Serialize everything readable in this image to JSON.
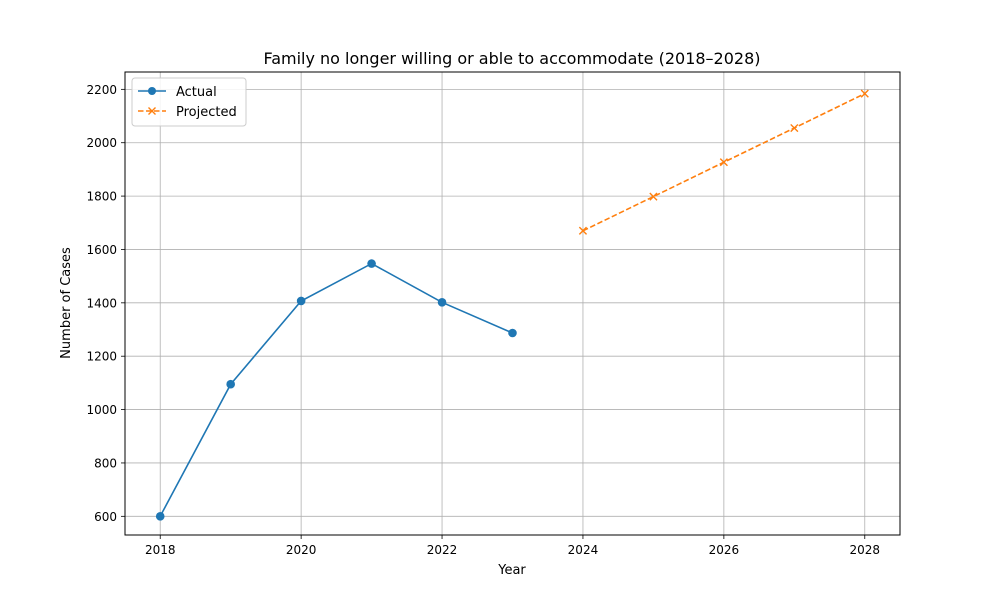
{
  "chart_data": {
    "type": "line",
    "title": "Family no longer willing or able to accommodate (2018–2028)",
    "xlabel": "Year",
    "ylabel": "Number of Cases",
    "xlim": [
      2017.5,
      2028.5
    ],
    "ylim": [
      530,
      2265
    ],
    "xticks": [
      2018,
      2020,
      2022,
      2024,
      2026,
      2028
    ],
    "yticks": [
      600,
      800,
      1000,
      1200,
      1400,
      1600,
      1800,
      2000,
      2200
    ],
    "grid": true,
    "legend_position": "top-left",
    "series": [
      {
        "name": "Actual",
        "color": "#1f77b4",
        "style": "solid",
        "marker": "circle",
        "x": [
          2018,
          2019,
          2020,
          2021,
          2022,
          2023
        ],
        "values": [
          600,
          1095,
          1407,
          1547,
          1402,
          1287
        ]
      },
      {
        "name": "Projected",
        "color": "#ff7f0e",
        "style": "dashed",
        "marker": "x",
        "x": [
          2024,
          2025,
          2026,
          2027,
          2028
        ],
        "values": [
          1670,
          1798,
          1927,
          2055,
          2184
        ]
      }
    ]
  }
}
